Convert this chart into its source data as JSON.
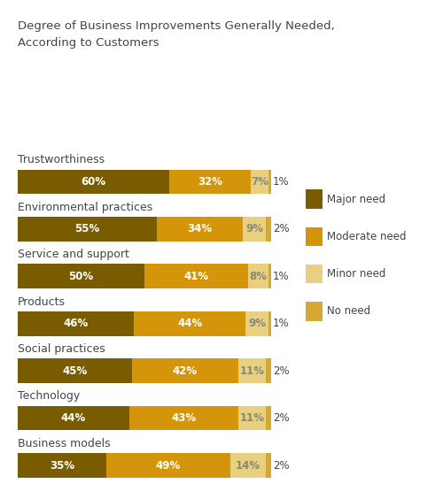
{
  "title_line1": "Degree of Business Improvements Generally Needed,",
  "title_line2": "According to Customers",
  "categories": [
    "Trustworthiness",
    "Environmental practices",
    "Service and support",
    "Products",
    "Social practices",
    "Technology",
    "Business models"
  ],
  "major_need": [
    60,
    55,
    50,
    46,
    45,
    44,
    35
  ],
  "moderate_need": [
    32,
    34,
    41,
    44,
    42,
    43,
    49
  ],
  "minor_need": [
    7,
    9,
    8,
    9,
    11,
    11,
    14
  ],
  "no_need": [
    1,
    2,
    1,
    1,
    2,
    2,
    2
  ],
  "colors": {
    "major": "#7a5c00",
    "moderate": "#d4950a",
    "minor": "#e8d080",
    "no_need": "#d4a832"
  },
  "legend_labels": [
    "Major need",
    "Moderate need",
    "Minor need",
    "No need"
  ],
  "background_color": "#ffffff",
  "bar_height": 0.52,
  "title_fontsize": 9.5,
  "label_fontsize": 8.5,
  "cat_fontsize": 9,
  "legend_fontsize": 8.5
}
